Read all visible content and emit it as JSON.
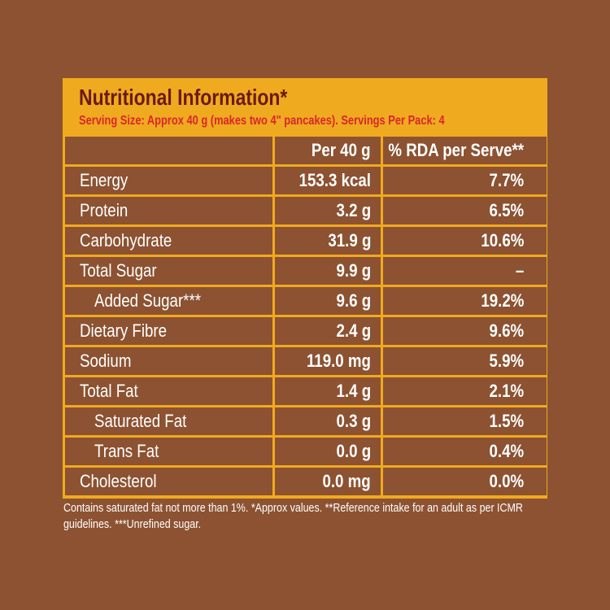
{
  "title": "Nutritional Information*",
  "serving_info": "Serving Size: Approx 40 g (makes two 4\" pancakes). Servings Per Pack: 4",
  "columns": [
    "",
    "Per 40 g",
    "% RDA per Serve**"
  ],
  "rows": [
    {
      "nutrient": "Energy",
      "per_40g": "153.3 kcal",
      "rda": "7.7%",
      "indent": false
    },
    {
      "nutrient": "Protein",
      "per_40g": "3.2 g",
      "rda": "6.5%",
      "indent": false
    },
    {
      "nutrient": "Carbohydrate",
      "per_40g": "31.9 g",
      "rda": "10.6%",
      "indent": false
    },
    {
      "nutrient": "Total Sugar",
      "per_40g": "9.9 g",
      "rda": "–",
      "indent": false
    },
    {
      "nutrient": "Added Sugar***",
      "per_40g": "9.6 g",
      "rda": "19.2%",
      "indent": true
    },
    {
      "nutrient": "Dietary Fibre",
      "per_40g": "2.4 g",
      "rda": "9.6%",
      "indent": false
    },
    {
      "nutrient": "Sodium",
      "per_40g": "119.0 mg",
      "rda": "5.9%",
      "indent": false
    },
    {
      "nutrient": "Total Fat",
      "per_40g": "1.4 g",
      "rda": "2.1%",
      "indent": false
    },
    {
      "nutrient": "Saturated Fat",
      "per_40g": "0.3 g",
      "rda": "1.5%",
      "indent": true
    },
    {
      "nutrient": "Trans Fat",
      "per_40g": "0.0 g",
      "rda": "0.4%",
      "indent": true
    },
    {
      "nutrient": "Cholesterol",
      "per_40g": "0.0 mg",
      "rda": "0.0%",
      "indent": false
    }
  ],
  "footnote": "Contains saturated fat not more than 1%. *Approx values. **Reference intake for an adult as per ICMR guidelines. ***Unrefined sugar.",
  "colors": {
    "background": "#8c5231",
    "border": "#f0aa1f",
    "title": "#6a1b14",
    "serving_info": "#d9262c"
  }
}
